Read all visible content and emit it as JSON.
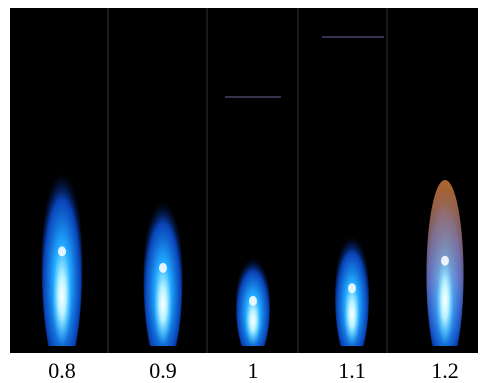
{
  "labels": [
    "0.8",
    "0.9",
    "1",
    "1.1",
    "1.2"
  ]
}
